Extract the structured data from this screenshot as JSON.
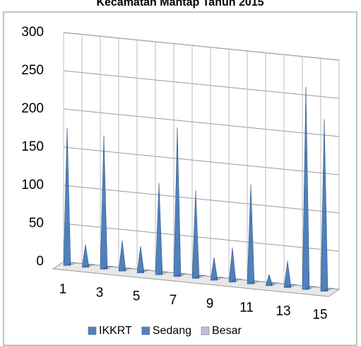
{
  "chart_data": {
    "type": "cone3d",
    "title": "Kecamatan Mantap Tahun 2015",
    "categories": [
      "1",
      null,
      "3",
      null,
      "5",
      null,
      "7",
      null,
      "9",
      null,
      "11",
      null,
      "13",
      null,
      "15"
    ],
    "series": [
      {
        "name": "IKKRT",
        "color": "#4f81bd",
        "values": [
          180,
          30,
          175,
          40,
          35,
          120,
          195,
          115,
          30,
          45,
          130,
          15,
          35,
          265,
          225
        ]
      },
      {
        "name": "Sedang",
        "color": "#4f81bd",
        "values": [
          0,
          0,
          0,
          0,
          0,
          0,
          0,
          0,
          0,
          0,
          0,
          0,
          0,
          0,
          0
        ]
      },
      {
        "name": "Besar",
        "color": "#b8c4d6",
        "values": [
          0,
          0,
          0,
          0,
          0,
          0,
          0,
          0,
          0,
          0,
          0,
          0,
          0,
          0,
          0
        ]
      }
    ],
    "ylim": [
      0,
      300
    ],
    "yticks": [
      0,
      50,
      100,
      150,
      200,
      250,
      300
    ],
    "grid": true,
    "legend": "bottom"
  }
}
